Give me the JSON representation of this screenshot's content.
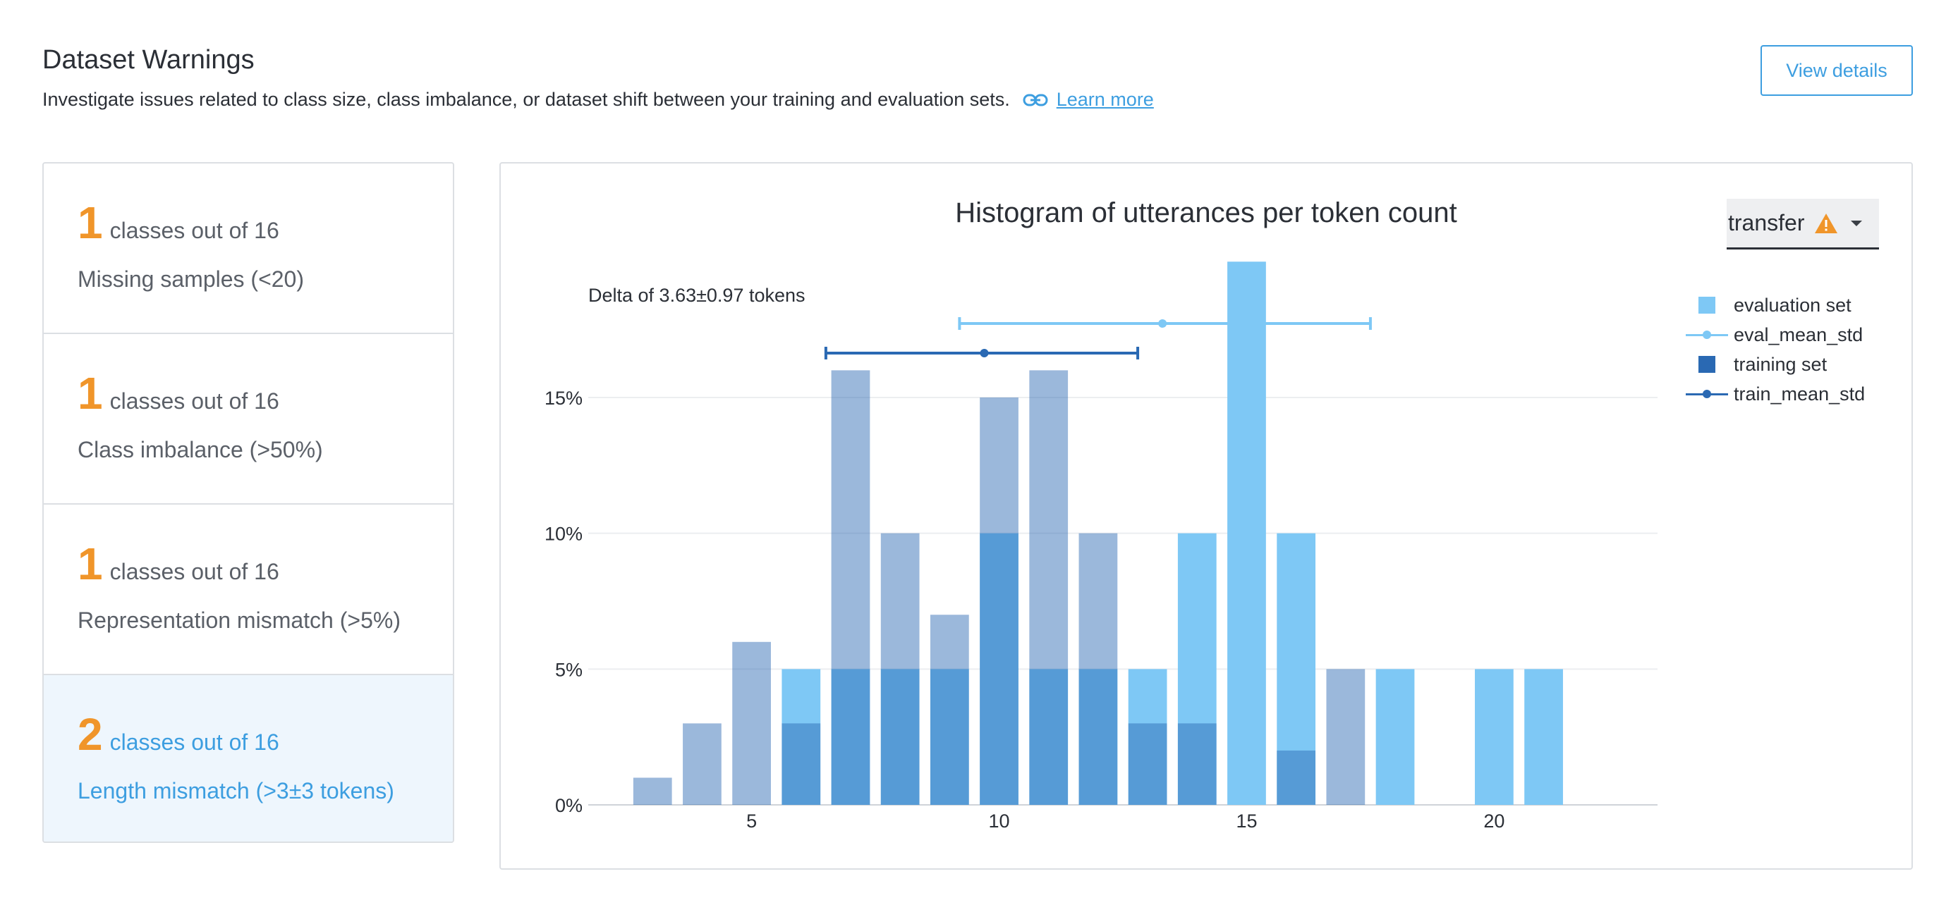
{
  "header": {
    "title": "Dataset Warnings",
    "subtitle": "Investigate issues related to class size, class imbalance, or dataset shift between your training and evaluation sets.",
    "learn_more": "Learn more",
    "view_details": "View details"
  },
  "cards": [
    {
      "count": "1",
      "of_text": "classes out of 16",
      "desc": "Missing samples (<20)",
      "active": false
    },
    {
      "count": "1",
      "of_text": "classes out of 16",
      "desc": "Class imbalance (>50%)",
      "active": false
    },
    {
      "count": "1",
      "of_text": "classes out of 16",
      "desc": "Representation mismatch (>5%)",
      "active": false
    },
    {
      "count": "2",
      "of_text": "classes out of 16",
      "desc": "Length mismatch (>3±3 tokens)",
      "active": true
    }
  ],
  "dropdown": {
    "selected": "transfer",
    "icon": "warning-icon"
  },
  "colors": {
    "accent": "#3d9ee0",
    "warning": "#f0952a",
    "eval": "#7ec8f5",
    "train": "#2a69b3"
  },
  "chart_data": {
    "type": "bar",
    "title": "Histogram of utterances per token count",
    "annotation": "Delta of 3.63±0.97 tokens",
    "xlabel": "",
    "ylabel": "",
    "x": [
      3,
      4,
      5,
      6,
      7,
      8,
      9,
      10,
      11,
      12,
      13,
      14,
      15,
      16,
      17,
      18,
      20,
      21
    ],
    "xticks": [
      "5",
      "10",
      "15",
      "20"
    ],
    "xtick_values": [
      5,
      10,
      15,
      20
    ],
    "yticks": [
      "0%",
      "5%",
      "10%",
      "15%"
    ],
    "ytick_values": [
      0,
      5,
      10,
      15
    ],
    "xlim": [
      1.7,
      23.3
    ],
    "ylim": [
      0,
      20.5
    ],
    "series": [
      {
        "name": "evaluation set",
        "values": [
          0,
          0,
          0,
          5,
          5,
          5,
          5,
          10,
          5,
          5,
          5,
          10,
          20,
          10,
          0,
          5,
          5,
          5
        ]
      },
      {
        "name": "training set",
        "values": [
          1,
          3,
          6,
          3,
          16,
          10,
          7,
          15,
          16,
          10,
          3,
          3,
          0,
          2,
          5,
          0,
          0,
          0
        ]
      }
    ],
    "error_bars": [
      {
        "name": "eval_mean_std",
        "mean": 13.3,
        "low": 9.2,
        "high": 17.5
      },
      {
        "name": "train_mean_std",
        "mean": 9.7,
        "low": 6.5,
        "high": 12.8
      }
    ],
    "legend": [
      "evaluation set",
      "eval_mean_std",
      "training set",
      "train_mean_std"
    ],
    "legend_position": "top-right",
    "grid": true
  }
}
